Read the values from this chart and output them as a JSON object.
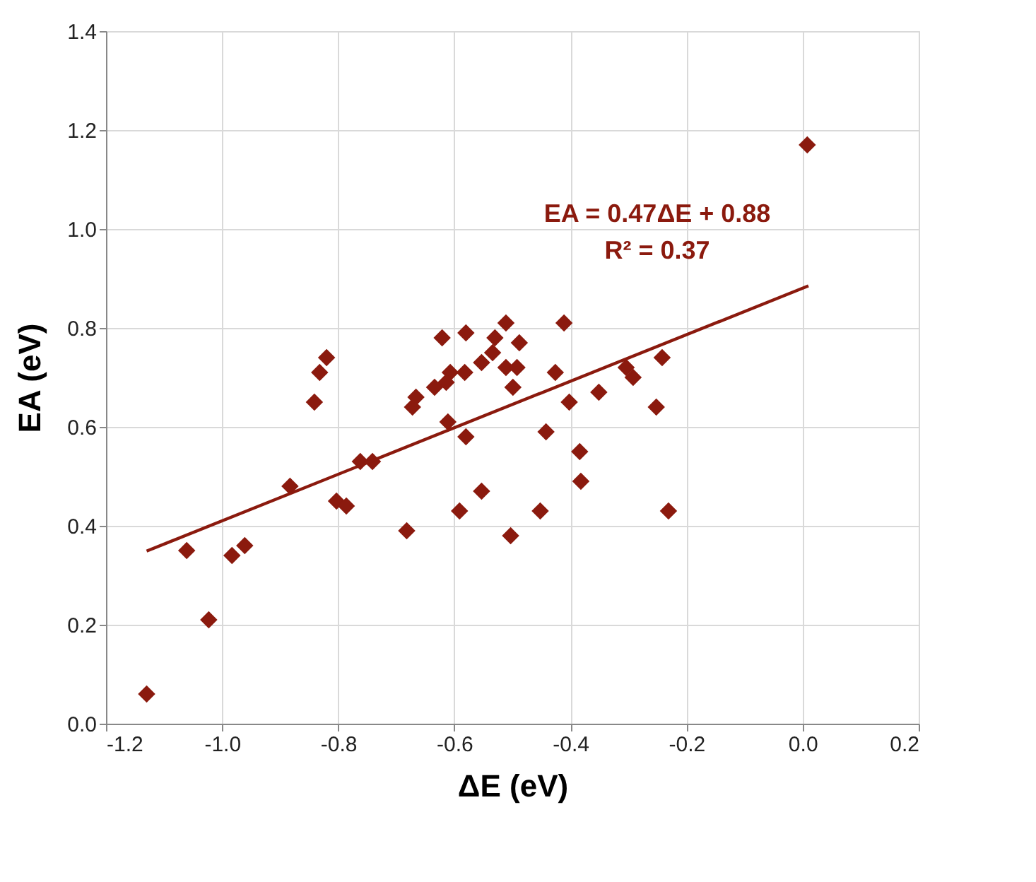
{
  "chart_data": {
    "type": "scatter",
    "xlabel": "ΔE (eV)",
    "ylabel": "EA (eV)",
    "x": [
      -0.621,
      -0.58,
      -0.511,
      -0.411,
      -0.53,
      -0.488,
      -0.534,
      -0.553,
      -0.607,
      -0.582,
      -0.614,
      -0.634,
      -0.511,
      -0.492,
      -0.499,
      -0.426,
      -0.242,
      -0.304,
      -0.292,
      -0.666,
      -0.672,
      -0.611,
      -0.402,
      -0.351,
      -0.252,
      -0.58,
      -0.442,
      -0.384,
      -0.382,
      -0.553,
      -0.591,
      -0.452,
      -0.231,
      -0.682,
      -0.503,
      -0.741,
      -1.13,
      -1.061,
      -1.023,
      -0.983,
      -0.961,
      -0.883,
      -0.841,
      -0.832,
      -0.82,
      -0.803,
      -0.786,
      -0.762,
      0.008
    ],
    "series": [
      {
        "color": "#8b1a0e",
        "marker": "diamond",
        "values": [
          0.78,
          0.79,
          0.81,
          0.81,
          0.78,
          0.77,
          0.75,
          0.73,
          0.71,
          0.71,
          0.69,
          0.68,
          0.72,
          0.72,
          0.68,
          0.71,
          0.74,
          0.72,
          0.7,
          0.66,
          0.64,
          0.61,
          0.65,
          0.67,
          0.64,
          0.58,
          0.59,
          0.55,
          0.49,
          0.47,
          0.43,
          0.43,
          0.43,
          0.39,
          0.38,
          0.53,
          0.06,
          0.35,
          0.21,
          0.34,
          0.36,
          0.48,
          0.65,
          0.71,
          0.74,
          0.45,
          0.44,
          0.53,
          1.17
        ]
      },
      {
        "type": "line",
        "color": "#8b1a0e",
        "line_style": "solid",
        "x": [
          -1.13,
          0.01
        ],
        "values": [
          0.349,
          0.885
        ]
      }
    ],
    "annotations": [
      "EA = 0.47ΔE + 0.88",
      "R² = 0.37"
    ],
    "xlim": [
      -1.2,
      0.2
    ],
    "ylim": [
      0,
      1.4
    ],
    "xticks": [
      {
        "value": -1.2,
        "label": "-1.2"
      },
      {
        "value": -1.0,
        "label": "-1.0"
      },
      {
        "value": -0.8,
        "label": "-0.8"
      },
      {
        "value": -0.6,
        "label": "-0.6"
      },
      {
        "value": -0.4,
        "label": "-0.4"
      },
      {
        "value": -0.2,
        "label": "-0.2"
      },
      {
        "value": 0,
        "label": "0.0"
      },
      {
        "value": 0.2,
        "label": "0.2"
      }
    ],
    "yticks": [
      {
        "value": 0,
        "label": "0.0"
      },
      {
        "value": 0.2,
        "label": "0.2"
      },
      {
        "value": 0.4,
        "label": "0.4"
      },
      {
        "value": 0.6,
        "label": "0.6"
      },
      {
        "value": 0.8,
        "label": "0.8"
      },
      {
        "value": 1.0,
        "label": "1.0"
      },
      {
        "value": 1.2,
        "label": "1.2"
      },
      {
        "value": 1.4,
        "label": "1.4"
      }
    ],
    "grid": true
  }
}
